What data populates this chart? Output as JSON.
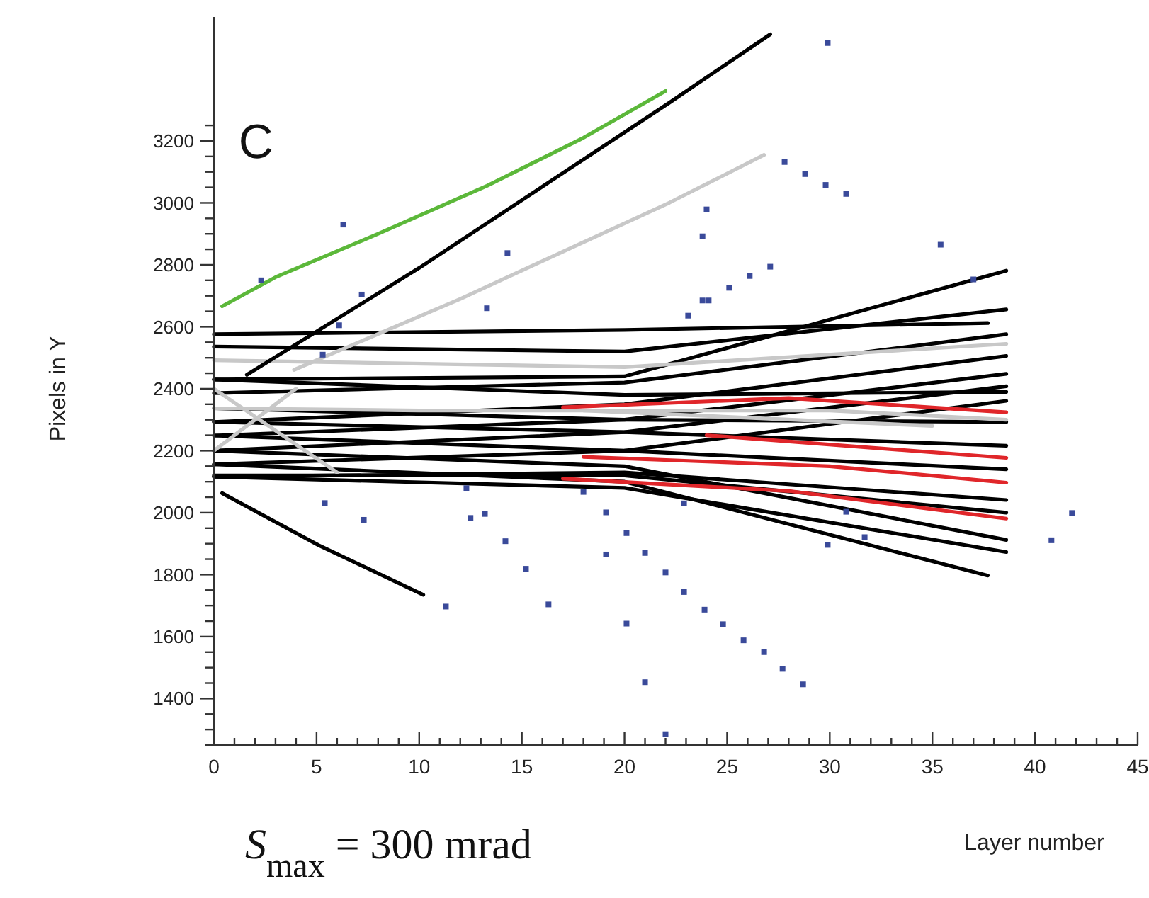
{
  "chart_data": {
    "type": "line",
    "xlabel": "Layer number",
    "ylabel": "Pixels in Y",
    "annotations": [
      "C",
      "S$_{max}$ = 300 mrad"
    ],
    "xlim": [
      0,
      45
    ],
    "ylim": [
      1250,
      3600
    ],
    "xticks": [
      0,
      {
        "value": 1,
        "label": null
      },
      {
        "value": 2,
        "label": null
      },
      {
        "value": 3,
        "label": null
      },
      {
        "value": 4,
        "label": null
      },
      5,
      {
        "value": 6,
        "label": null
      },
      {
        "value": 7,
        "label": null
      },
      {
        "value": 8,
        "label": null
      },
      {
        "value": 9,
        "label": null
      },
      10,
      {
        "value": 11,
        "label": null
      },
      {
        "value": 12,
        "label": null
      },
      {
        "value": 13,
        "label": null
      },
      {
        "value": 14,
        "label": null
      },
      15,
      {
        "value": 16,
        "label": null
      },
      {
        "value": 17,
        "label": null
      },
      {
        "value": 18,
        "label": null
      },
      {
        "value": 19,
        "label": null
      },
      20,
      {
        "value": 21,
        "label": null
      },
      {
        "value": 22,
        "label": null
      },
      {
        "value": 23,
        "label": null
      },
      {
        "value": 24,
        "label": null
      },
      25,
      {
        "value": 26,
        "label": null
      },
      {
        "value": 27,
        "label": null
      },
      {
        "value": 28,
        "label": null
      },
      {
        "value": 29,
        "label": null
      },
      30,
      {
        "value": 31,
        "label": null
      },
      {
        "value": 32,
        "label": null
      },
      {
        "value": 33,
        "label": null
      },
      {
        "value": 34,
        "label": null
      },
      35,
      {
        "value": 36,
        "label": null
      },
      {
        "value": 37,
        "label": null
      },
      {
        "value": 38,
        "label": null
      },
      {
        "value": 39,
        "label": null
      },
      40,
      {
        "value": 41,
        "label": null
      },
      {
        "value": 42,
        "label": null
      },
      {
        "value": 43,
        "label": null
      },
      {
        "value": 44,
        "label": null
      },
      45
    ],
    "yticks": [
      {
        "value": 1250,
        "label": null
      },
      {
        "value": 1300,
        "label": null
      },
      {
        "value": 1350,
        "label": null
      },
      1400,
      {
        "value": 1450,
        "label": null
      },
      {
        "value": 1500,
        "label": null
      },
      {
        "value": 1550,
        "label": null
      },
      1600,
      {
        "value": 1650,
        "label": null
      },
      {
        "value": 1700,
        "label": null
      },
      {
        "value": 1750,
        "label": null
      },
      1800,
      {
        "value": 1850,
        "label": null
      },
      {
        "value": 1900,
        "label": null
      },
      {
        "value": 1950,
        "label": null
      },
      2000,
      {
        "value": 2050,
        "label": null
      },
      {
        "value": 2100,
        "label": null
      },
      {
        "value": 2150,
        "label": null
      },
      2200,
      {
        "value": 2250,
        "label": null
      },
      {
        "value": 2300,
        "label": null
      },
      {
        "value": 2350,
        "label": null
      },
      2400,
      {
        "value": 2450,
        "label": null
      },
      {
        "value": 2500,
        "label": null
      },
      {
        "value": 2550,
        "label": null
      },
      2600,
      {
        "value": 2650,
        "label": null
      },
      {
        "value": 2700,
        "label": null
      },
      {
        "value": 2750,
        "label": null
      },
      2800,
      {
        "value": 2850,
        "label": null
      },
      {
        "value": 2900,
        "label": null
      },
      {
        "value": 2950,
        "label": null
      },
      3000,
      {
        "value": 3050,
        "label": null
      },
      {
        "value": 3100,
        "label": null
      },
      {
        "value": 3150,
        "label": null
      },
      3200,
      {
        "value": 3250,
        "label": null
      }
    ],
    "series": [
      {
        "color": "#000000",
        "x": [
          0,
          20,
          37.7
        ],
        "values": [
          2576,
          2590,
          2612
        ]
      },
      {
        "color": "#000000",
        "x": [
          0,
          20,
          38.6
        ],
        "values": [
          2536,
          2520,
          2656
        ]
      },
      {
        "color": "#000000",
        "x": [
          0,
          20,
          38.6
        ],
        "values": [
          2430,
          2440,
          2781
        ]
      },
      {
        "color": "#000000",
        "x": [
          0,
          20,
          38.6
        ],
        "values": [
          2386,
          2420,
          2576
        ]
      },
      {
        "color": "#000000",
        "x": [
          0,
          20,
          38.6
        ],
        "values": [
          2293,
          2350,
          2506
        ]
      },
      {
        "color": "#000000",
        "x": [
          0,
          20,
          38.6
        ],
        "values": [
          2249,
          2300,
          2448
        ]
      },
      {
        "color": "#000000",
        "x": [
          0,
          20,
          38.6
        ],
        "values": [
          2200,
          2260,
          2408
        ]
      },
      {
        "color": "#000000",
        "x": [
          0,
          20,
          38.6
        ],
        "values": [
          2156,
          2200,
          2361
        ]
      },
      {
        "color": "#000000",
        "x": [
          0,
          20,
          38.6
        ],
        "values": [
          2116,
          2130,
          2041
        ]
      },
      {
        "color": "#000000",
        "x": [
          0,
          20,
          37.7
        ],
        "values": [
          2156,
          2100,
          1797
        ]
      },
      {
        "color": "#000000",
        "x": [
          0,
          20,
          38.6
        ],
        "values": [
          2116,
          2080,
          1873
        ]
      },
      {
        "color": "#000000",
        "x": [
          0,
          20,
          38.6
        ],
        "values": [
          2200,
          2150,
          1912
        ]
      },
      {
        "color": "#000000",
        "x": [
          0,
          20,
          38.6
        ],
        "values": [
          2249,
          2200,
          2140
        ]
      },
      {
        "color": "#000000",
        "x": [
          0,
          20,
          38.6
        ],
        "values": [
          2293,
          2260,
          2216
        ]
      },
      {
        "color": "#000000",
        "x": [
          0,
          20,
          38.6
        ],
        "values": [
          2337,
          2300,
          2293
        ]
      },
      {
        "color": "#000000",
        "x": [
          0,
          20,
          38.6
        ],
        "values": [
          2430,
          2380,
          2390
        ]
      },
      {
        "color": "#000000",
        "x": [
          0,
          20,
          38.6
        ],
        "values": [
          2120,
          2120,
          2000
        ]
      },
      {
        "color": "#e0262a",
        "x": [
          17,
          28,
          38.6
        ],
        "values": [
          2340,
          2370,
          2324
        ]
      },
      {
        "color": "#e0262a",
        "x": [
          17,
          28,
          38.6
        ],
        "values": [
          2110,
          2070,
          1981
        ]
      },
      {
        "color": "#e0262a",
        "x": [
          18,
          30,
          38.6
        ],
        "values": [
          2180,
          2150,
          2097
        ]
      },
      {
        "color": "#e0262a",
        "x": [
          24,
          38.6
        ],
        "values": [
          2250,
          2177
        ]
      },
      {
        "color": "#c8c8c8",
        "x": [
          0,
          20,
          38.6
        ],
        "values": [
          2492,
          2470,
          2545
        ]
      },
      {
        "color": "#c8c8c8",
        "x": [
          0,
          10,
          30,
          38.6
        ],
        "values": [
          2337,
          2330,
          2330,
          2300
        ]
      },
      {
        "color": "#c8c8c8",
        "x": [
          0,
          6
        ],
        "values": [
          2400,
          2130
        ]
      },
      {
        "color": "#c8c8c8",
        "x": [
          0,
          4
        ],
        "values": [
          2200,
          2400
        ]
      },
      {
        "color": "#c8c8c8",
        "x": [
          18,
          35
        ],
        "values": [
          2330,
          2280
        ]
      },
      {
        "color": "#000000",
        "x": [
          0.4,
          5.1,
          10.2
        ],
        "values": [
          2063,
          1895,
          1735
        ]
      },
      {
        "color": "#c8c8c8",
        "x": [
          3.9,
          12,
          22.2,
          26.8
        ],
        "values": [
          2461,
          2690,
          3001,
          3155
        ]
      },
      {
        "color": "#000000",
        "x": [
          1.6,
          10,
          22.2,
          27.1
        ],
        "values": [
          2445,
          2790,
          3324,
          3544
        ]
      },
      {
        "color": "#5cb83a",
        "x": [
          0.4,
          3,
          8,
          13.3,
          18,
          22
        ],
        "values": [
          2666,
          2760,
          2900,
          3055,
          3210,
          3361
        ]
      },
      {
        "type": "scatter",
        "marker": "square",
        "color": "#3a4a9a",
        "x": [
          2.3,
          6.3,
          7.2,
          6.1,
          5.3,
          14.3,
          13.3,
          5.4,
          7.3,
          12.3,
          12.5,
          13.2,
          14.2,
          15.2,
          16.3,
          11.3,
          18,
          19.1,
          20.1,
          19.1,
          21,
          22,
          20.1,
          21,
          22,
          29.9,
          27.8,
          28.8,
          29.8,
          30.8,
          24,
          23.8,
          27.1,
          26.1,
          25.1,
          23.8,
          24.1,
          23.1,
          35.4,
          37,
          41.8,
          40.8,
          22.9,
          23.9,
          24.8,
          25.8,
          26.8,
          27.7,
          28.7,
          29.9,
          31.7,
          22.9,
          30.8
        ],
        "values": [
          2750,
          2930,
          2704,
          2605,
          2510,
          2838,
          2660,
          2031,
          1977,
          2079,
          1983,
          1996,
          1908,
          1819,
          1704,
          1697,
          2067,
          2001,
          1934,
          1865,
          1870,
          1807,
          1642,
          1453,
          1285,
          3516,
          3132,
          3093,
          3058,
          3029,
          2979,
          2892,
          2794,
          2764,
          2726,
          2685,
          2685,
          2636,
          2865,
          2753,
          1999,
          1911,
          1744,
          1687,
          1640,
          1588,
          1550,
          1496,
          1446,
          1896,
          1921,
          2030,
          2003
        ]
      }
    ]
  }
}
